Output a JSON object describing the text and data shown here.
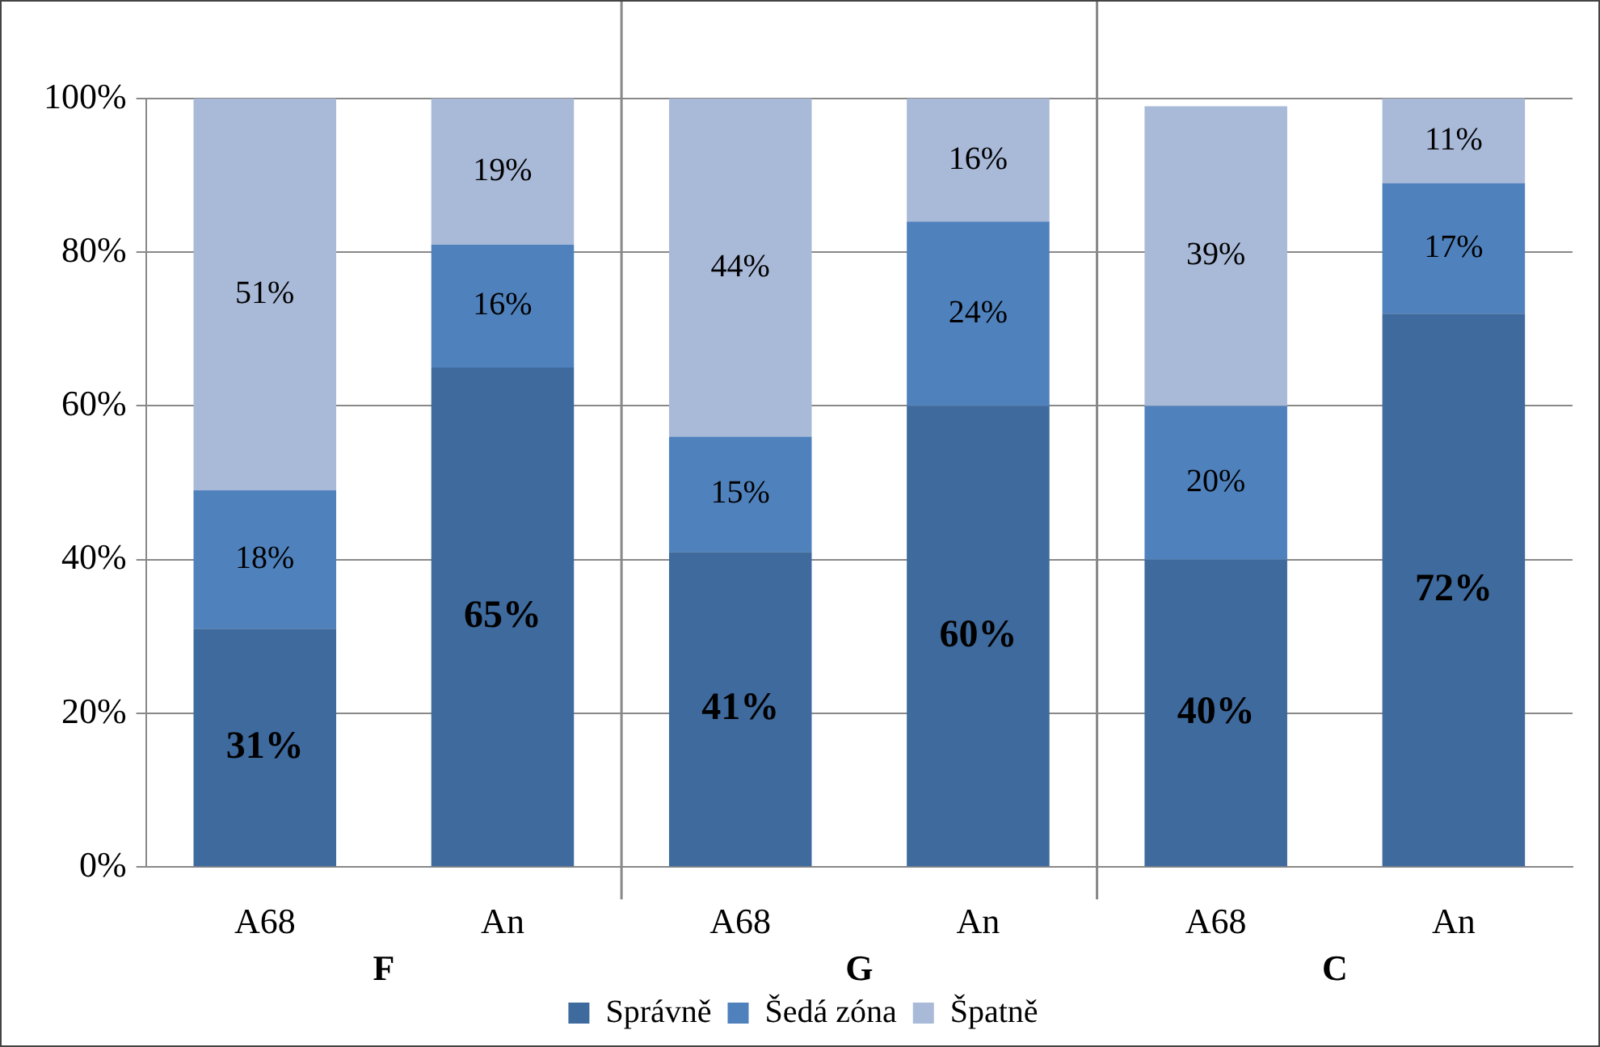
{
  "chart_data": {
    "type": "bar",
    "stacked": true,
    "categories": [
      "A68",
      "An",
      "A68",
      "An",
      "A68",
      "An"
    ],
    "series": [
      {
        "name": "Správně",
        "color": "#3e6a9e",
        "values": [
          31,
          65,
          41,
          60,
          40,
          72
        ],
        "value_labels": [
          "31%",
          "65%",
          "41%",
          "60%",
          "40%",
          "72%"
        ]
      },
      {
        "name": "Šedá zóna",
        "color": "#4f81bd",
        "values": [
          18,
          16,
          15,
          24,
          20,
          17
        ],
        "value_labels": [
          "18%",
          "16%",
          "15%",
          "24%",
          "20%",
          "17%"
        ]
      },
      {
        "name": "Špatně",
        "color": "#a9b9d8",
        "values": [
          51,
          19,
          44,
          16,
          39,
          11
        ],
        "value_labels": [
          "51%",
          "19%",
          "44%",
          "16%",
          "39%",
          "11%"
        ]
      }
    ],
    "ylim": [
      0,
      100
    ],
    "yticks": [
      {
        "value": 0,
        "label": "0%"
      },
      {
        "value": 20,
        "label": "20%"
      },
      {
        "value": 40,
        "label": "40%"
      },
      {
        "value": 60,
        "label": "60%"
      },
      {
        "value": 80,
        "label": "80%"
      },
      {
        "value": 100,
        "label": "100%"
      }
    ],
    "grid": "y",
    "legend": "bottom",
    "annotations": [
      "F",
      "G",
      "C"
    ]
  }
}
